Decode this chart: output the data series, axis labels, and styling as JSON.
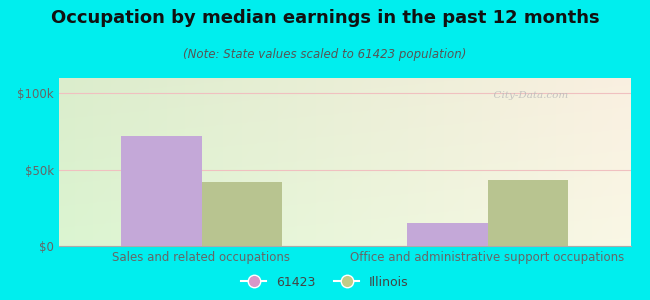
{
  "title": "Occupation by median earnings in the past 12 months",
  "subtitle": "(Note: State values scaled to 61423 population)",
  "categories": [
    "Sales and related occupations",
    "Office and administrative support occupations"
  ],
  "series": {
    "61423": [
      72000,
      15000
    ],
    "Illinois": [
      42000,
      43000
    ]
  },
  "bar_colors": {
    "61423": "#c4a8d8",
    "Illinois": "#b8c490"
  },
  "legend_colors": {
    "61423": "#d896c8",
    "Illinois": "#c0cc88"
  },
  "ylim": [
    0,
    110000
  ],
  "yticks": [
    0,
    50000,
    100000
  ],
  "ytick_labels": [
    "$0",
    "$50k",
    "$100k"
  ],
  "background_color": "#00eeee",
  "bar_width": 0.28,
  "title_fontsize": 13,
  "subtitle_fontsize": 8.5,
  "tick_fontsize": 8.5,
  "watermark": "  City-Data.com"
}
